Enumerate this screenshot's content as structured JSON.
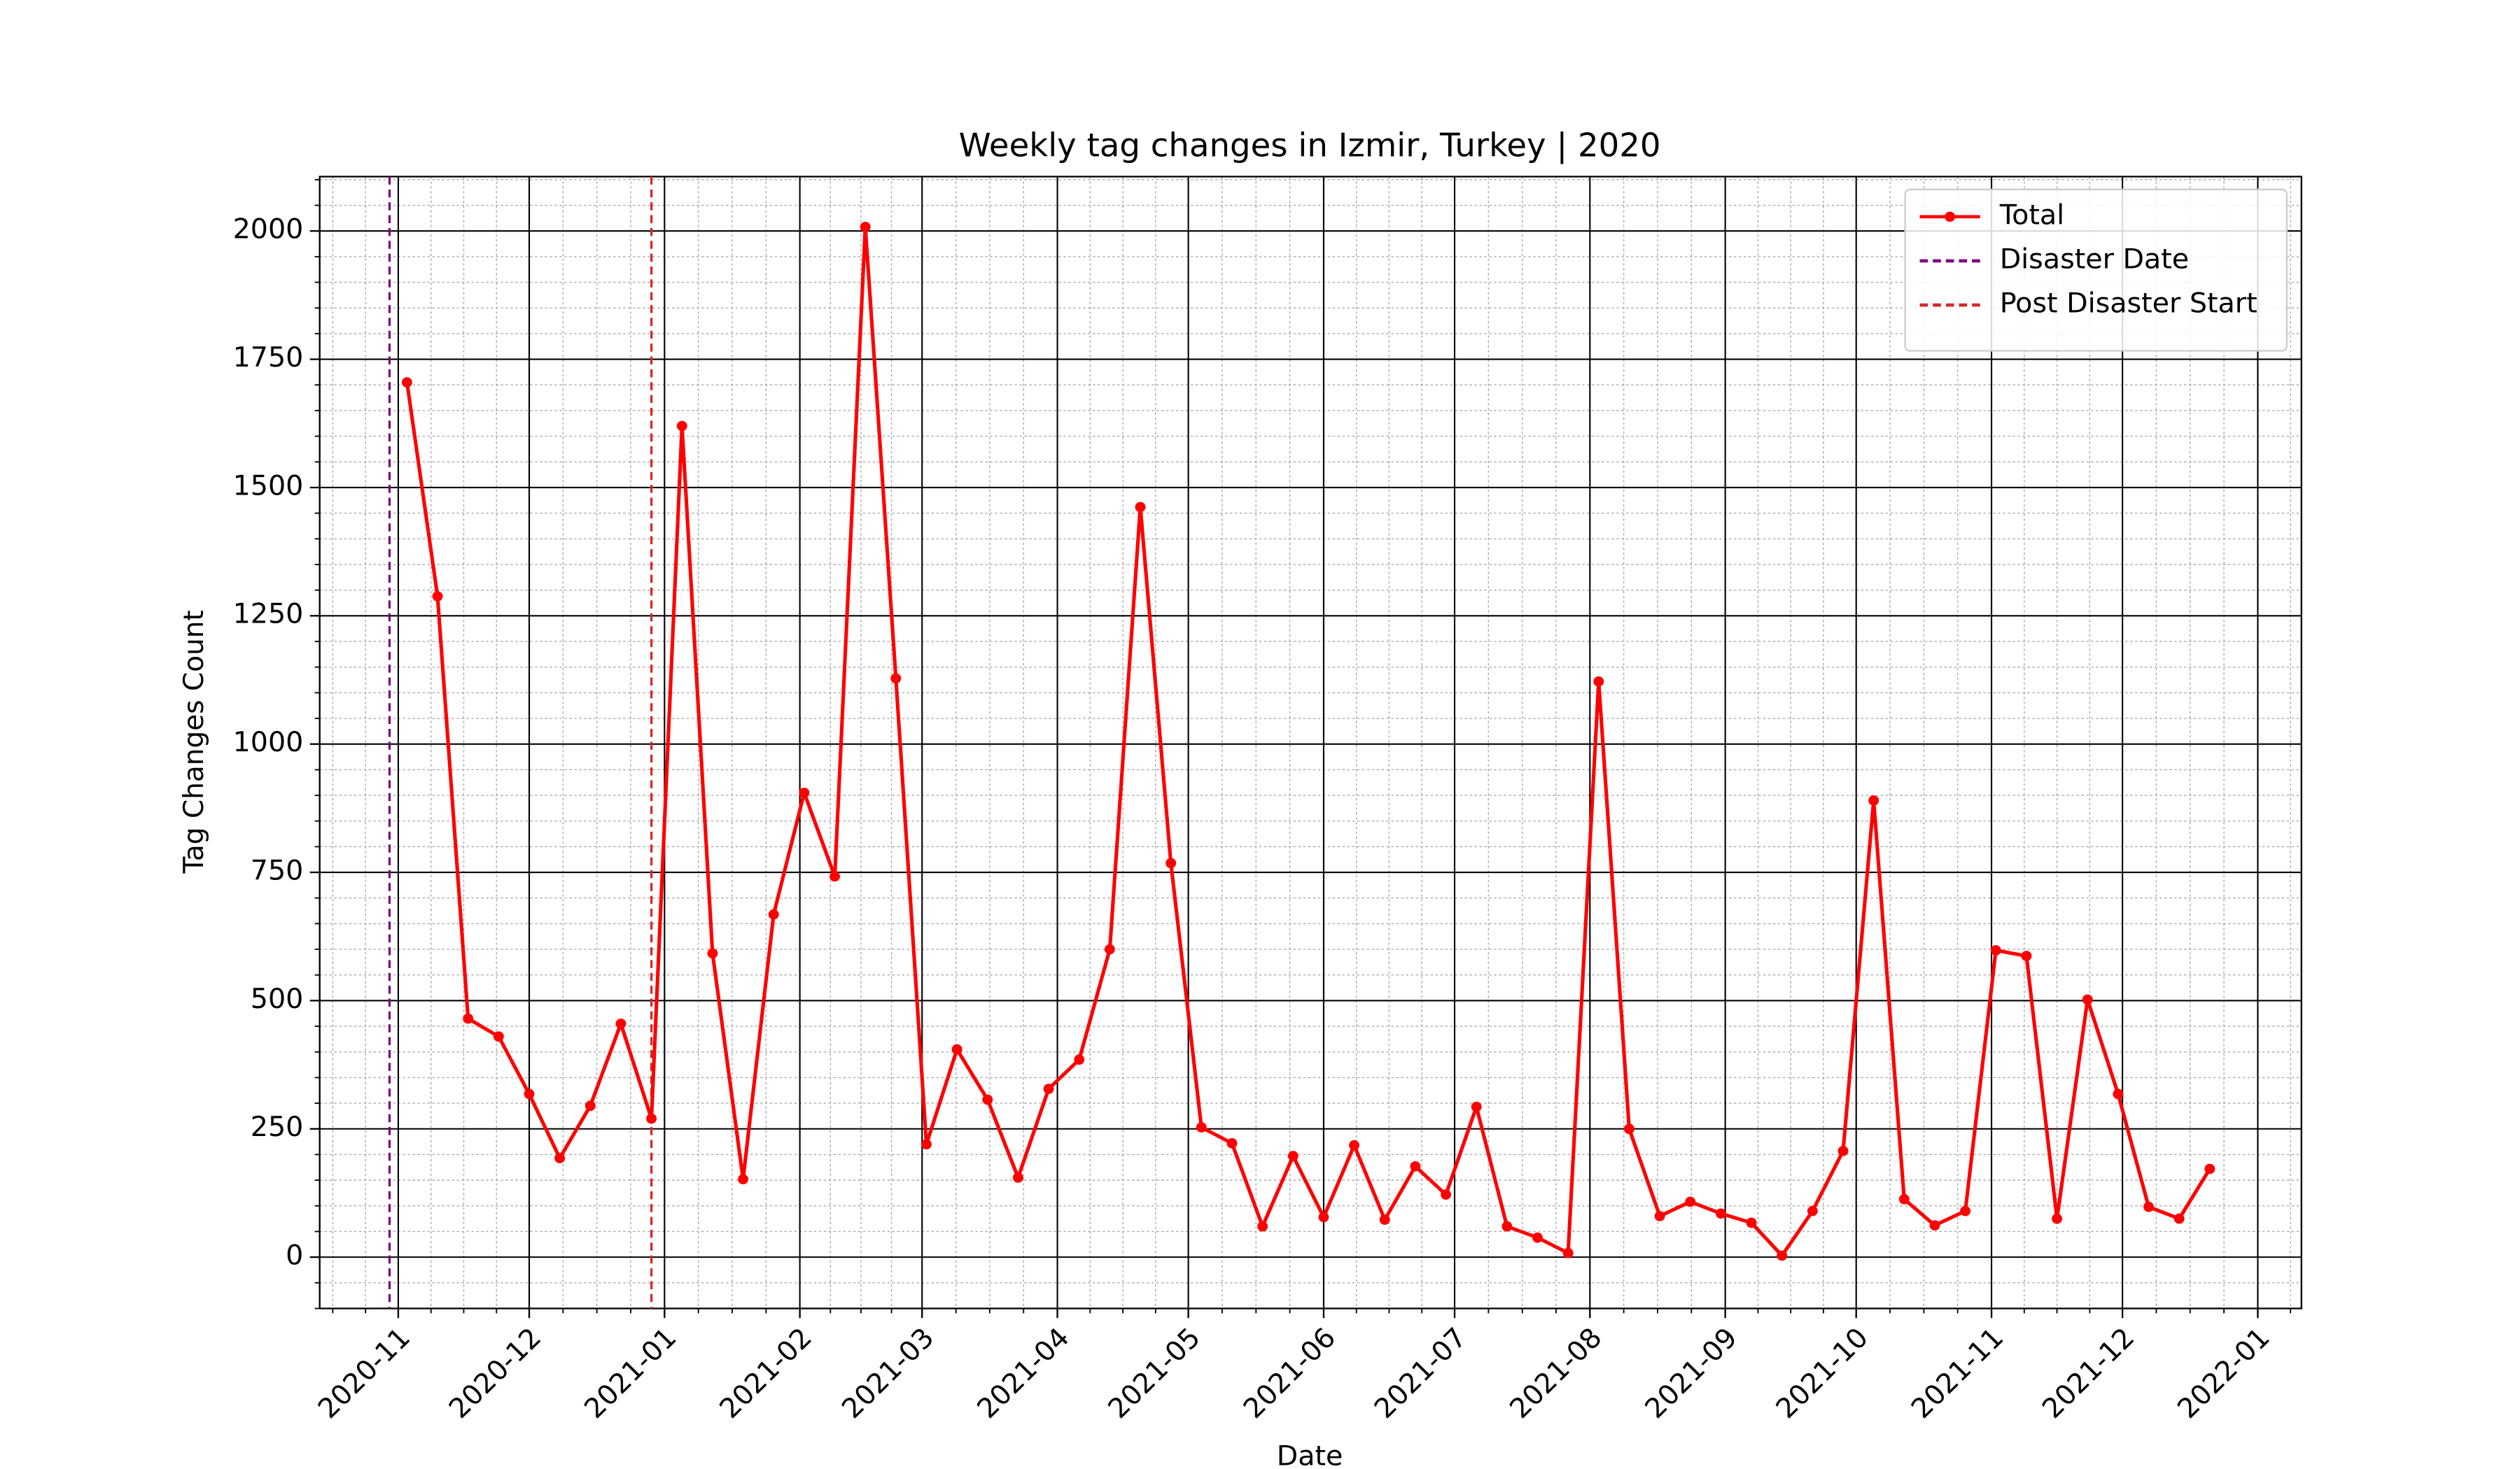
{
  "chart_data": {
    "type": "line",
    "title": "Weekly tag changes in Izmir, Turkey | 2020",
    "x_label": "Date",
    "y_label": "Tag Changes Count",
    "x": [
      "2020-11-03",
      "2020-11-10",
      "2020-11-17",
      "2020-11-24",
      "2020-12-01",
      "2020-12-08",
      "2020-12-15",
      "2020-12-22",
      "2020-12-29",
      "2021-01-05",
      "2021-01-12",
      "2021-01-19",
      "2021-01-26",
      "2021-02-02",
      "2021-02-09",
      "2021-02-16",
      "2021-02-23",
      "2021-03-02",
      "2021-03-09",
      "2021-03-16",
      "2021-03-23",
      "2021-03-30",
      "2021-04-06",
      "2021-04-13",
      "2021-04-20",
      "2021-04-27",
      "2021-05-04",
      "2021-05-11",
      "2021-05-18",
      "2021-05-25",
      "2021-06-01",
      "2021-06-08",
      "2021-06-15",
      "2021-06-22",
      "2021-06-29",
      "2021-07-06",
      "2021-07-13",
      "2021-07-20",
      "2021-07-27",
      "2021-08-03",
      "2021-08-10",
      "2021-08-17",
      "2021-08-24",
      "2021-08-31",
      "2021-09-07",
      "2021-09-14",
      "2021-09-21",
      "2021-09-28",
      "2021-10-05",
      "2021-10-12",
      "2021-10-19",
      "2021-10-26",
      "2021-11-02",
      "2021-11-09",
      "2021-11-16",
      "2021-11-23",
      "2021-11-30",
      "2021-12-07",
      "2021-12-14",
      "2021-12-21"
    ],
    "series": [
      {
        "name": "Total",
        "color": "#ff0000",
        "values": [
          1705,
          1288,
          465,
          430,
          318,
          193,
          295,
          455,
          270,
          1620,
          592,
          152,
          668,
          905,
          742,
          2008,
          1128,
          220,
          405,
          307,
          155,
          328,
          385,
          600,
          1462,
          768,
          253,
          222,
          60,
          197,
          78,
          218,
          73,
          177,
          122,
          293,
          60,
          38,
          8,
          1122,
          250,
          80,
          108,
          85,
          67,
          3,
          90,
          207,
          890,
          113,
          62,
          90,
          598,
          587,
          75,
          502,
          318,
          98,
          75,
          172
        ]
      }
    ],
    "vlines": [
      {
        "name": "Disaster Date",
        "color": "#800080",
        "x": "2020-10-30"
      },
      {
        "name": "Post Disaster Start",
        "color": "#d62728",
        "x": "2020-12-29"
      }
    ],
    "xlim": [
      "2020-10-14",
      "2022-01-11"
    ],
    "xticks": [
      "2020-11",
      "2020-12",
      "2021-01",
      "2021-02",
      "2021-03",
      "2021-04",
      "2021-05",
      "2021-06",
      "2021-07",
      "2021-08",
      "2021-09",
      "2021-10",
      "2021-11",
      "2021-12",
      "2022-01"
    ],
    "ylim": [
      -100,
      2106
    ],
    "yticks": [
      0,
      250,
      500,
      750,
      1000,
      1250,
      1500,
      1750,
      2000
    ],
    "grid": true,
    "legend": "upper right"
  }
}
